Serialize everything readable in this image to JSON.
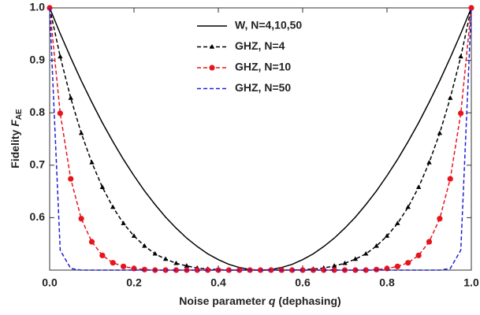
{
  "chart_data": {
    "type": "line",
    "xlabel": {
      "text": "Noise parameter",
      "var": "q",
      "note": "(dephasing)"
    },
    "ylabel": {
      "text": "Fidelity",
      "var": "F",
      "sub": "AE"
    },
    "x": [
      0,
      0.025,
      0.05,
      0.075,
      0.1,
      0.125,
      0.15,
      0.175,
      0.2,
      0.225,
      0.25,
      0.275,
      0.3,
      0.325,
      0.35,
      0.375,
      0.4,
      0.425,
      0.45,
      0.475,
      0.5,
      0.525,
      0.55,
      0.575,
      0.6,
      0.625,
      0.65,
      0.675,
      0.7,
      0.725,
      0.75,
      0.775,
      0.8,
      0.825,
      0.85,
      0.875,
      0.9,
      0.925,
      0.95,
      0.975,
      1
    ],
    "series": [
      {
        "name": "W, N=4,10,50",
        "color": "#000000",
        "dash": false,
        "marker": "none",
        "values": [
          1,
          0.951,
          0.905,
          0.861,
          0.82,
          0.781,
          0.745,
          0.711,
          0.68,
          0.651,
          0.625,
          0.601,
          0.58,
          0.561,
          0.545,
          0.531,
          0.52,
          0.511,
          0.505,
          0.501,
          0.5,
          0.501,
          0.505,
          0.511,
          0.52,
          0.531,
          0.545,
          0.561,
          0.58,
          0.601,
          0.625,
          0.651,
          0.68,
          0.711,
          0.745,
          0.781,
          0.82,
          0.861,
          0.905,
          0.951,
          1
        ]
      },
      {
        "name": "GHZ, N=4",
        "color": "#000000",
        "dash": true,
        "marker": "triangle",
        "values": [
          1,
          0.907,
          0.828,
          0.761,
          0.705,
          0.658,
          0.62,
          0.589,
          0.565,
          0.546,
          0.531,
          0.521,
          0.513,
          0.508,
          0.504,
          0.502,
          0.501,
          0.5,
          0.5,
          0.5,
          0.5,
          0.5,
          0.5,
          0.5,
          0.501,
          0.502,
          0.504,
          0.508,
          0.513,
          0.521,
          0.531,
          0.546,
          0.565,
          0.589,
          0.62,
          0.658,
          0.705,
          0.761,
          0.828,
          0.907,
          1
        ]
      },
      {
        "name": "GHZ, N=10",
        "color": "#e8141c",
        "dash": true,
        "marker": "circle",
        "values": [
          1,
          0.799,
          0.674,
          0.598,
          0.554,
          0.528,
          0.514,
          0.507,
          0.503,
          0.501,
          0.5,
          0.5,
          0.5,
          0.5,
          0.5,
          0.5,
          0.5,
          0.5,
          0.5,
          0.5,
          0.5,
          0.5,
          0.5,
          0.5,
          0.5,
          0.5,
          0.5,
          0.5,
          0.5,
          0.5,
          0.5,
          0.501,
          0.503,
          0.507,
          0.514,
          0.528,
          0.554,
          0.598,
          0.674,
          0.799,
          1
        ]
      },
      {
        "name": "GHZ, N=50",
        "color": "#1f1fd6",
        "dash": true,
        "marker": "none",
        "values": [
          1,
          0.538,
          0.503,
          0.5,
          0.5,
          0.5,
          0.5,
          0.5,
          0.5,
          0.5,
          0.5,
          0.5,
          0.5,
          0.5,
          0.5,
          0.5,
          0.5,
          0.5,
          0.5,
          0.5,
          0.5,
          0.5,
          0.5,
          0.5,
          0.5,
          0.5,
          0.5,
          0.5,
          0.5,
          0.5,
          0.5,
          0.5,
          0.5,
          0.5,
          0.5,
          0.5,
          0.5,
          0.5,
          0.503,
          0.538,
          1
        ]
      }
    ],
    "xlim": [
      0,
      1
    ],
    "ylim": [
      0.5,
      1
    ],
    "xticks": [
      {
        "value": 0,
        "label": "0.0"
      },
      0.2,
      0.4,
      0.6,
      0.8,
      {
        "value": 1,
        "label": "1.0"
      }
    ],
    "yticks": [
      0.6,
      0.7,
      0.8,
      0.9,
      {
        "value": 1,
        "label": "1.0"
      }
    ],
    "legend": "upper center",
    "grid": false
  }
}
